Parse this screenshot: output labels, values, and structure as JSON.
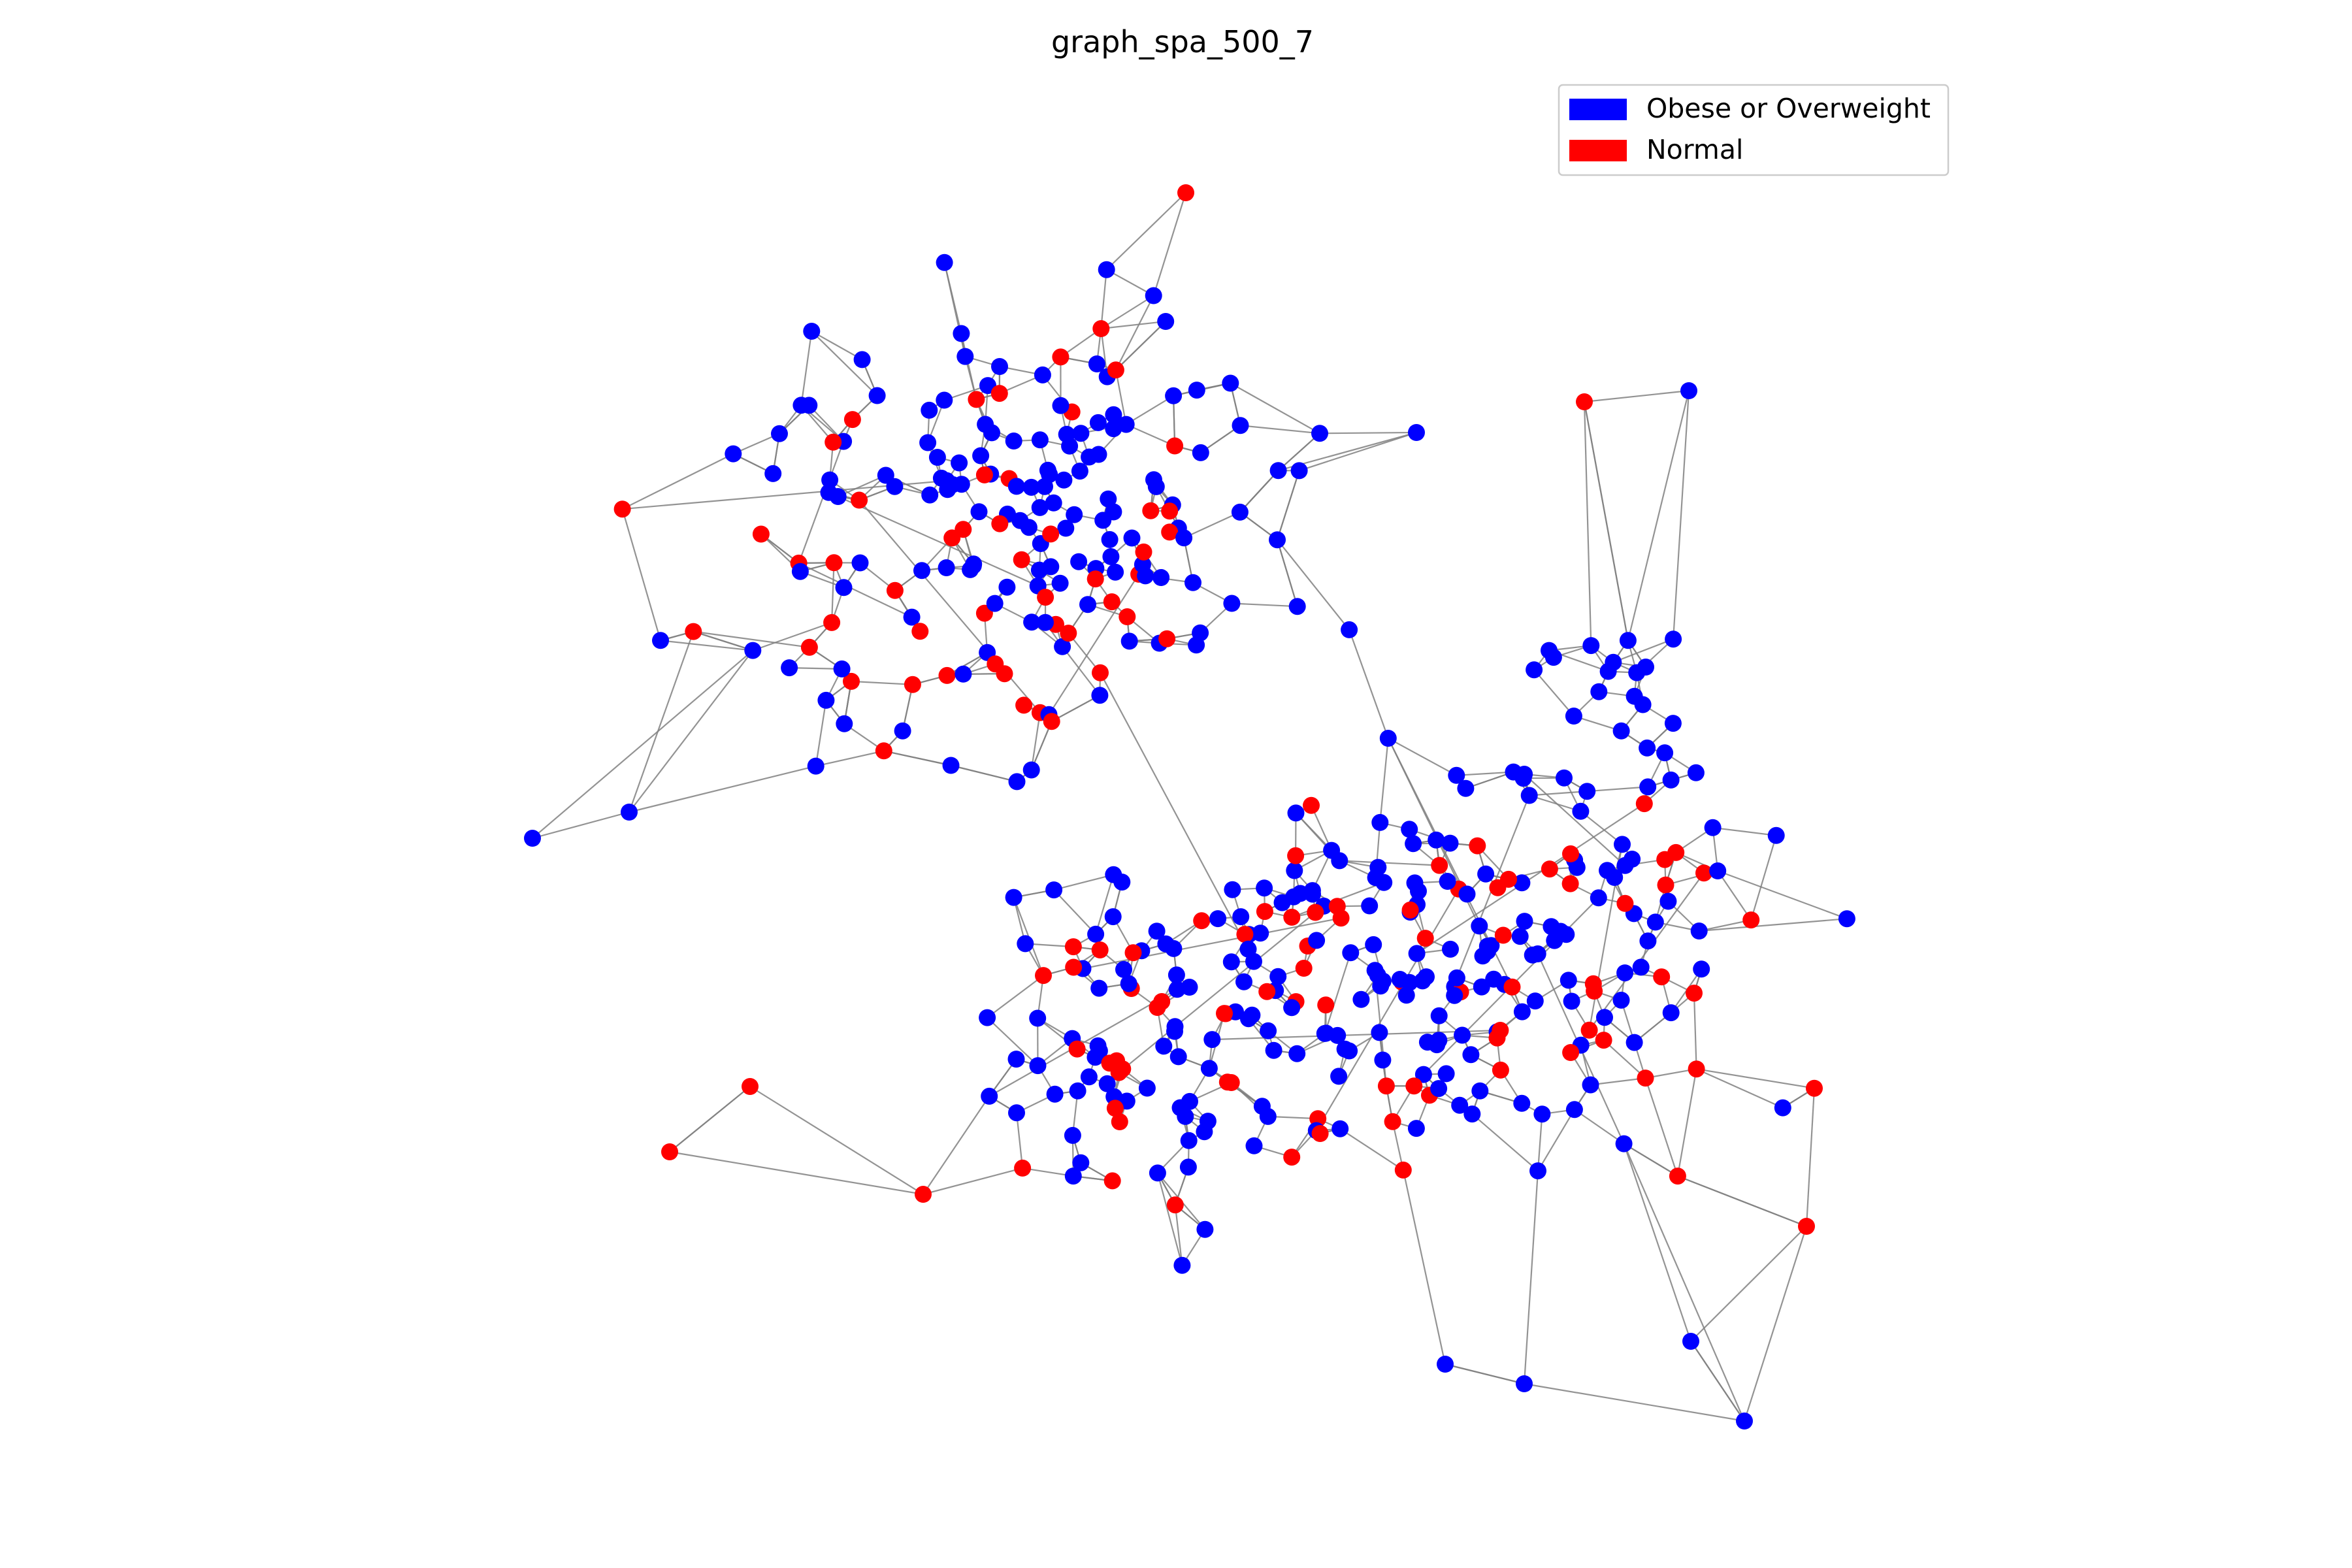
{
  "title": "graph_spa_500_7",
  "legend": [
    {
      "label": "Obese or Overweight",
      "color": "#0000ff"
    },
    {
      "label": "Normal",
      "color": "#ff0000"
    }
  ],
  "edge_color": "#808080"
}
